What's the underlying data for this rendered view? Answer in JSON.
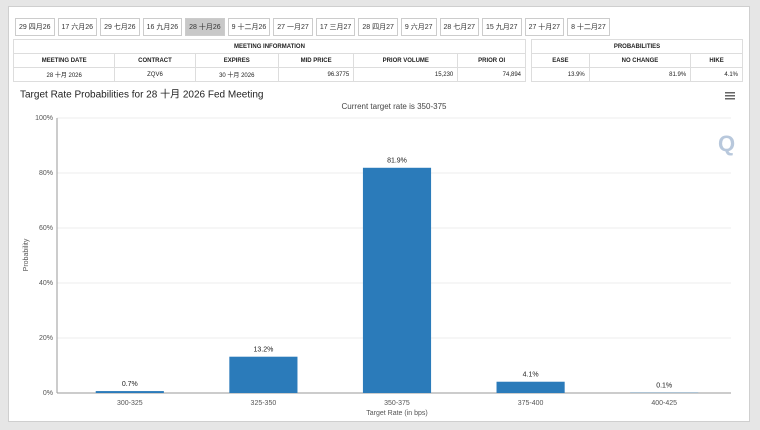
{
  "tabs": [
    "29 四月26",
    "17 六月26",
    "29 七月26",
    "16 九月26",
    "28 十月26",
    "9 十二月26",
    "27 一月27",
    "17 三月27",
    "28 四月27",
    "9 六月27",
    "28 七月27",
    "15 九月27",
    "27 十月27",
    "8 十二月27"
  ],
  "active_tab": 4,
  "table": {
    "groups": [
      {
        "title": "MEETING INFORMATION",
        "columns": [
          "MEETING DATE",
          "CONTRACT",
          "EXPIRES",
          "MID PRICE",
          "PRIOR VOLUME",
          "PRIOR OI"
        ],
        "row": [
          "28 十月 2026",
          "ZQV6",
          "30 十月 2026",
          "96.3775",
          "15,230",
          "74,894"
        ]
      },
      {
        "title": "PROBABILITIES",
        "columns": [
          "EASE",
          "NO CHANGE",
          "HIKE"
        ],
        "row": [
          "13.9%",
          "81.9%",
          "4.1%"
        ]
      }
    ]
  },
  "chart_data": {
    "type": "bar",
    "title": "Target Rate Probabilities for 28 十月 2026 Fed Meeting",
    "subtitle": "Current target rate is 350-375",
    "x_label": "Target Rate (in bps)",
    "y_label": "Probability",
    "categories": [
      "300-325",
      "325-350",
      "350-375",
      "375-400",
      "400-425"
    ],
    "values": [
      0.7,
      13.2,
      81.9,
      4.1,
      0.1
    ],
    "value_labels": [
      "0.7%",
      "13.2%",
      "81.9%",
      "4.1%",
      "0.1%"
    ],
    "color": "#2b7bba",
    "ylim": [
      0,
      100
    ],
    "yticks": [
      {
        "value": 0,
        "label": "0%"
      },
      {
        "value": 20,
        "label": "20%"
      },
      {
        "value": 40,
        "label": "40%"
      },
      {
        "value": 60,
        "label": "60%"
      },
      {
        "value": 80,
        "label": "80%"
      },
      {
        "value": 100,
        "label": "100%"
      }
    ],
    "grid": true
  }
}
